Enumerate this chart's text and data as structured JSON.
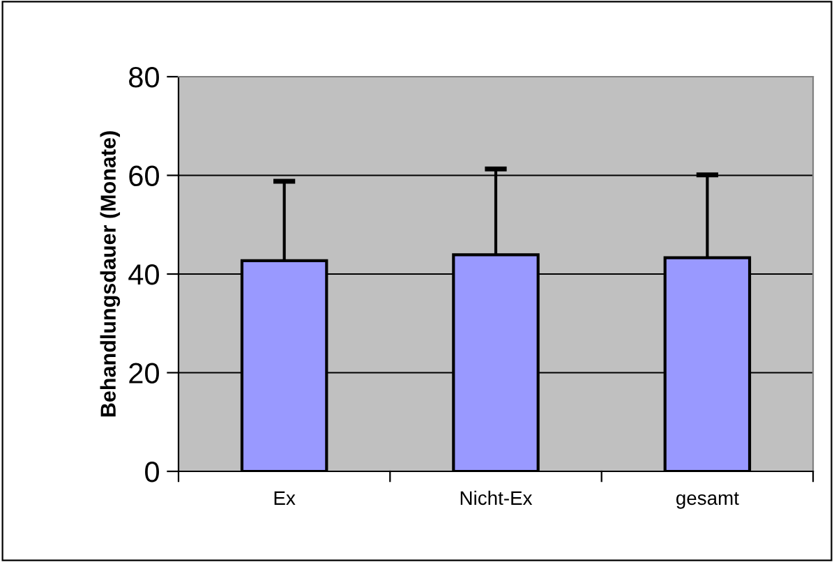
{
  "chart_data": {
    "type": "bar",
    "ylabel": "Behandlungsdauer (Monate)",
    "categories": [
      "Ex",
      "Nicht-Ex",
      "gesamt"
    ],
    "values": [
      42.7,
      43.9,
      43.3
    ],
    "color": "#9999ff",
    "errors": [
      [
        42.7,
        58.8
      ],
      [
        43.9,
        61.3
      ],
      [
        43.3,
        60.1
      ]
    ],
    "ylim": [
      0,
      80
    ],
    "yticks": [
      0,
      20,
      40,
      60,
      80
    ],
    "grid": "y",
    "legend": false
  }
}
